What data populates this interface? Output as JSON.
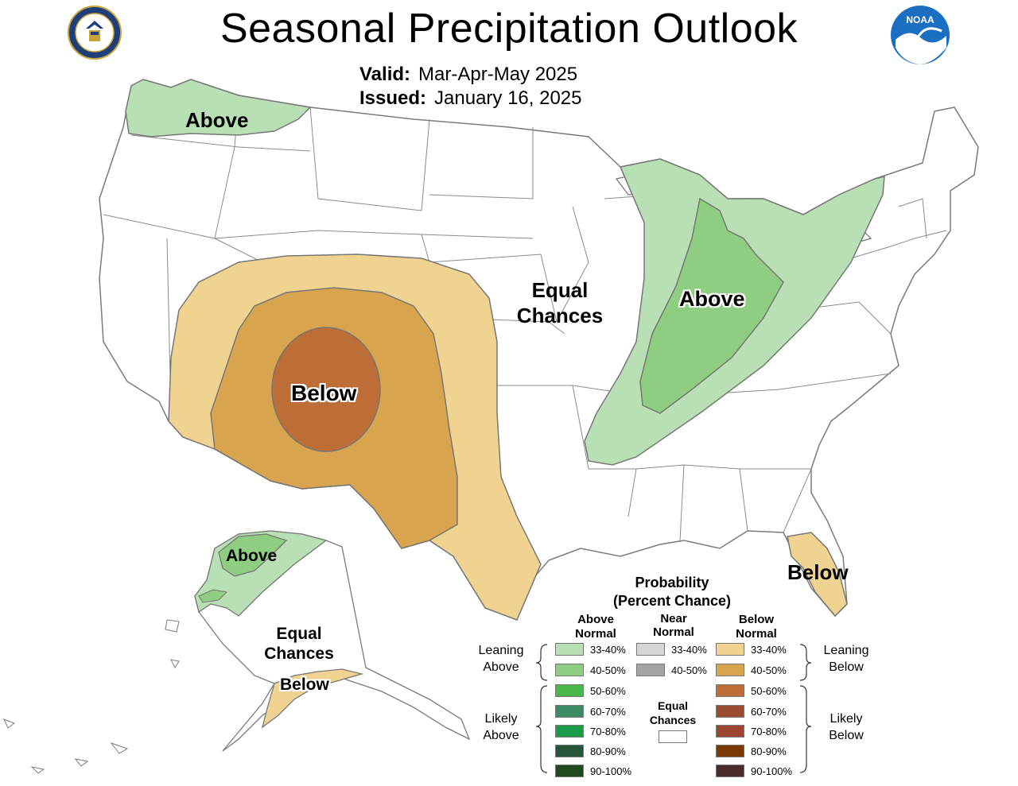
{
  "header": {
    "title": "Seasonal Precipitation Outlook",
    "valid_label": "Valid:",
    "valid_value": "Mar-Apr-May 2025",
    "issued_label": "Issued:",
    "issued_value": "January 16, 2025"
  },
  "map_labels": {
    "northwest": "Above",
    "ohio_valley": "Above",
    "southwest": "Below",
    "florida": "Below",
    "center_line1": "Equal",
    "center_line2": "Chances",
    "alaska_above": "Above",
    "alaska_ec_line1": "Equal",
    "alaska_ec_line2": "Chances",
    "alaska_below": "Below"
  },
  "legend": {
    "title_line1": "Probability",
    "title_line2": "(Percent Chance)",
    "col_above_line1": "Above",
    "col_above_line2": "Normal",
    "col_near_line1": "Near",
    "col_near_line2": "Normal",
    "col_below_line1": "Below",
    "col_below_line2": "Normal",
    "leaning_above_line1": "Leaning",
    "leaning_above_line2": "Above",
    "likely_above_line1": "Likely",
    "likely_above_line2": "Above",
    "leaning_below_line1": "Leaning",
    "leaning_below_line2": "Below",
    "likely_below_line1": "Likely",
    "likely_below_line2": "Below",
    "ec_line1": "Equal",
    "ec_line2": "Chances",
    "above_items": [
      {
        "label": "33-40%",
        "color": "#b9dfb4"
      },
      {
        "label": "40-50%",
        "color": "#8fcd80"
      },
      {
        "label": "50-60%",
        "color": "#4bb74a"
      },
      {
        "label": "60-70%",
        "color": "#3d8b64"
      },
      {
        "label": "70-80%",
        "color": "#1b9a4a"
      },
      {
        "label": "80-90%",
        "color": "#27573a"
      },
      {
        "label": "90-100%",
        "color": "#1e4a1c"
      }
    ],
    "near_items": [
      {
        "label": "33-40%",
        "color": "#d6d6d6"
      },
      {
        "label": "40-50%",
        "color": "#a3a3a3"
      }
    ],
    "below_items": [
      {
        "label": "33-40%",
        "color": "#f0d390"
      },
      {
        "label": "40-50%",
        "color": "#d8a44d"
      },
      {
        "label": "50-60%",
        "color": "#bd6d36"
      },
      {
        "label": "60-70%",
        "color": "#9a4c30"
      },
      {
        "label": "70-80%",
        "color": "#9b4535"
      },
      {
        "label": "80-90%",
        "color": "#7a3a06"
      },
      {
        "label": "90-100%",
        "color": "#4a2c2c"
      }
    ]
  },
  "logos": {
    "left": "commerce-seal-icon",
    "right": "noaa-logo-icon",
    "noaa_text": "NOAA"
  },
  "colors": {
    "above_33_40": "#b9dfb4",
    "above_40_50": "#8fcd80",
    "below_33_40": "#f0d390",
    "below_40_50": "#d8a44d",
    "below_50_60": "#bd6d36",
    "border": "#777777"
  }
}
